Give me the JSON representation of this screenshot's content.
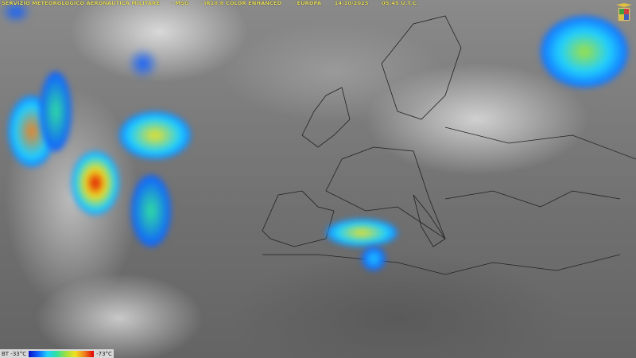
{
  "header": {
    "agency": "SERVIZIO METEOROLOGICO AERONAUTICA MILITARE",
    "satellite": "MSG",
    "product": "IR10.8 COLOR ENHANCED",
    "region": "EUROPA",
    "date": "14/10/2025",
    "time": "05:45 U.T.C."
  },
  "legend": {
    "label_left": "BT -33°C",
    "label_right": "-73°C",
    "colors": [
      "#0a10c0",
      "#1060ff",
      "#20d0ff",
      "#30e0a0",
      "#a0e040",
      "#f0e020",
      "#f08020",
      "#e00000"
    ]
  },
  "header_color": "#e8e060",
  "logo": {
    "icon": "aeronautica-militare-crest-icon"
  }
}
